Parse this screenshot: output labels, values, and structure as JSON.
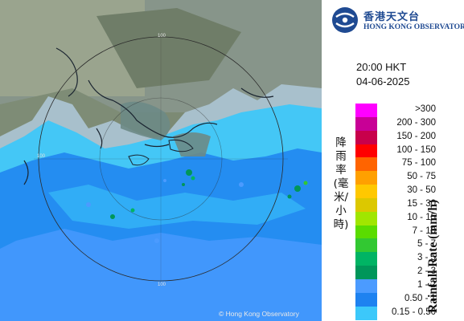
{
  "map": {
    "copyright": "© Hong Kong Observatory",
    "range_labels": [
      "100",
      "100",
      "100"
    ]
  },
  "logo": {
    "name_cn": "香港天文台",
    "name_en": "HONG KONG OBSERVATORY"
  },
  "timestamp": {
    "time": "20:00 HKT",
    "date": "04-06-2025"
  },
  "legend": {
    "title_cn": "降雨率(毫米/小時)",
    "title_en": "Rainfall Rate (mm/h)",
    "items": [
      {
        "label": ">300",
        "color": "#ff00ff"
      },
      {
        "label": "200 - 300",
        "color": "#c80096"
      },
      {
        "label": "150 - 200",
        "color": "#c8004b"
      },
      {
        "label": "100 - 150",
        "color": "#ff0000"
      },
      {
        "label": "75 - 100",
        "color": "#ff6400"
      },
      {
        "label": "50 - 75",
        "color": "#ffa000"
      },
      {
        "label": "30 - 50",
        "color": "#ffc800"
      },
      {
        "label": "15 - 30",
        "color": "#dcc800"
      },
      {
        "label": "10 - 15",
        "color": "#a0e600"
      },
      {
        "label": "7 - 10",
        "color": "#5adc00"
      },
      {
        "label": "5 - 7",
        "color": "#32c832"
      },
      {
        "label": "3 - 5",
        "color": "#00b464"
      },
      {
        "label": "2 - 3",
        "color": "#00965a"
      },
      {
        "label": "1 - 2",
        "color": "#4b9bff"
      },
      {
        "label": "0.50 - 1",
        "color": "#1e82f0"
      },
      {
        "label": "0.15 - 0.50",
        "color": "#3cc8fa"
      }
    ]
  }
}
